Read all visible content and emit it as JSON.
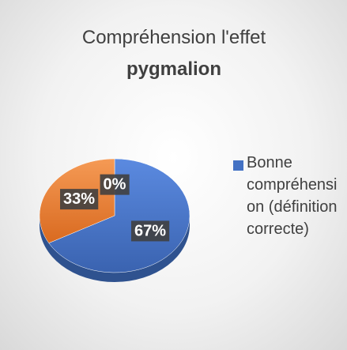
{
  "chart_data": {
    "type": "pie",
    "title": [
      "Compréhension l'effet",
      "pygmalion"
    ],
    "categories": [
      "Bonne compréhension (définition correcte)",
      null,
      null
    ],
    "values": [
      67,
      33,
      0
    ],
    "value_labels": [
      "67%",
      "33%",
      "0%"
    ],
    "colors": [
      "#4472c4",
      "#ed7d31",
      "#a5a5a5"
    ]
  }
}
